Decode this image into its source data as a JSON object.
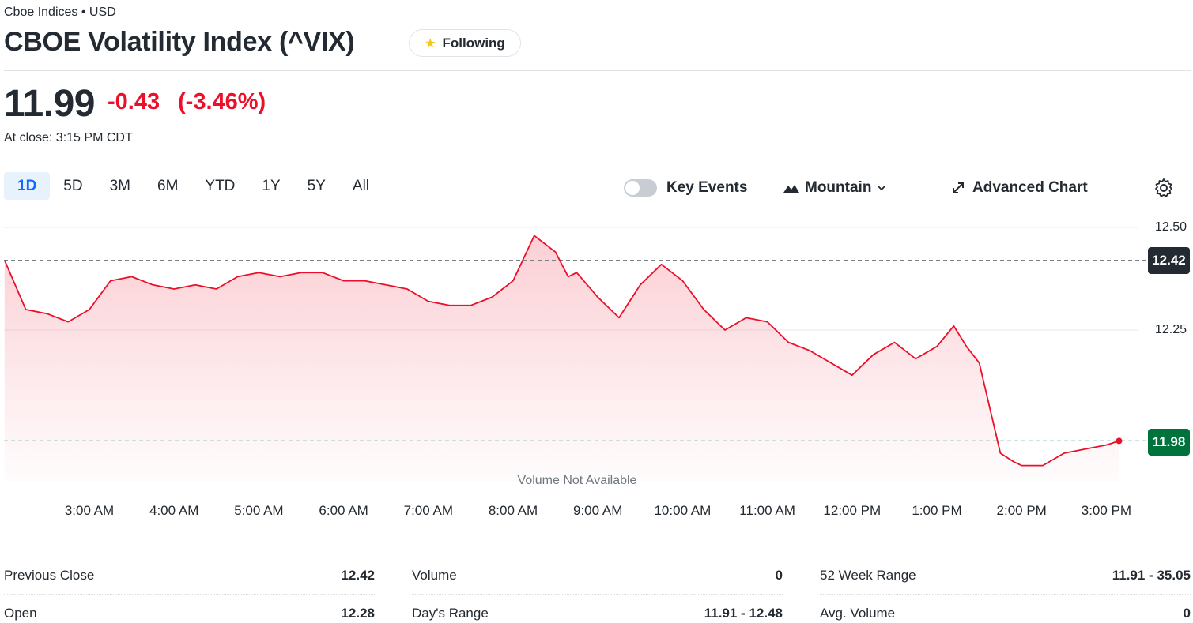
{
  "header": {
    "exchange": "Cboe Indices • USD",
    "title": "CBOE Volatility Index (^VIX)",
    "follow_label": "Following"
  },
  "quote": {
    "price": "11.99",
    "change": "-0.43",
    "change_pct": "(-3.46%)",
    "close_time": "At close: 3:15 PM CDT"
  },
  "range_tabs": [
    {
      "label": "1D",
      "active": true
    },
    {
      "label": "5D"
    },
    {
      "label": "3M"
    },
    {
      "label": "6M"
    },
    {
      "label": "YTD"
    },
    {
      "label": "1Y"
    },
    {
      "label": "5Y"
    },
    {
      "label": "All"
    }
  ],
  "chart_controls": {
    "key_events": "Key Events",
    "key_events_on": false,
    "chart_type": "Mountain",
    "advanced": "Advanced Chart"
  },
  "chart_data": {
    "type": "area",
    "title": "",
    "xlabel": "",
    "ylabel": "",
    "x_ticks": [
      "3:00 AM",
      "4:00 AM",
      "5:00 AM",
      "6:00 AM",
      "7:00 AM",
      "8:00 AM",
      "9:00 AM",
      "10:00 AM",
      "11:00 AM",
      "12:00 PM",
      "1:00 PM",
      "2:00 PM",
      "3:00 PM"
    ],
    "y_ticks": [
      "12.50",
      "12.25"
    ],
    "ylim": [
      11.9,
      12.52
    ],
    "reference_lines": [
      {
        "label": "12.42",
        "value": 12.42,
        "color": "#232a31"
      },
      {
        "label": "11.98",
        "value": 11.98,
        "color": "#00733d"
      }
    ],
    "series": [
      {
        "color": "#eb0f29",
        "x": [
          2.0,
          2.25,
          2.5,
          2.75,
          3.0,
          3.25,
          3.5,
          3.75,
          4.0,
          4.25,
          4.5,
          4.75,
          5.0,
          5.25,
          5.5,
          5.75,
          6.0,
          6.25,
          6.5,
          6.75,
          7.0,
          7.25,
          7.5,
          7.75,
          8.0,
          8.25,
          8.5,
          8.6,
          8.65,
          8.75,
          9.0,
          9.25,
          9.5,
          9.75,
          10.0,
          10.25,
          10.5,
          10.75,
          11.0,
          11.25,
          11.5,
          11.75,
          12.0,
          12.25,
          12.5,
          12.75,
          13.0,
          13.2,
          13.35,
          13.5,
          13.75,
          13.9,
          14.0,
          14.25,
          14.5,
          14.75,
          15.0,
          15.15
        ],
        "values": [
          12.42,
          12.3,
          12.29,
          12.27,
          12.3,
          12.37,
          12.38,
          12.36,
          12.35,
          12.36,
          12.35,
          12.38,
          12.39,
          12.38,
          12.39,
          12.39,
          12.37,
          12.37,
          12.36,
          12.35,
          12.32,
          12.31,
          12.31,
          12.33,
          12.37,
          12.48,
          12.44,
          12.4,
          12.38,
          12.39,
          12.33,
          12.28,
          12.36,
          12.41,
          12.37,
          12.3,
          12.25,
          12.28,
          12.27,
          12.22,
          12.2,
          12.17,
          12.14,
          12.19,
          12.22,
          12.18,
          12.21,
          12.26,
          12.21,
          12.17,
          11.95,
          11.93,
          11.92,
          11.92,
          11.95,
          11.96,
          11.97,
          11.98
        ]
      }
    ],
    "grid": true,
    "volume_note": "Volume Not Available"
  },
  "stats": [
    [
      {
        "label": "Previous Close",
        "value": "12.42"
      },
      {
        "label": "Open",
        "value": "12.28"
      }
    ],
    [
      {
        "label": "Volume",
        "value": "0"
      },
      {
        "label": "Day's Range",
        "value": "11.91 - 12.48"
      }
    ],
    [
      {
        "label": "52 Week Range",
        "value": "11.91 - 35.05"
      },
      {
        "label": "Avg. Volume",
        "value": "0"
      }
    ]
  ],
  "colors": {
    "up": "#00733d",
    "down": "#eb0f29",
    "accent": "#0f69ff",
    "text": "#232a31"
  }
}
